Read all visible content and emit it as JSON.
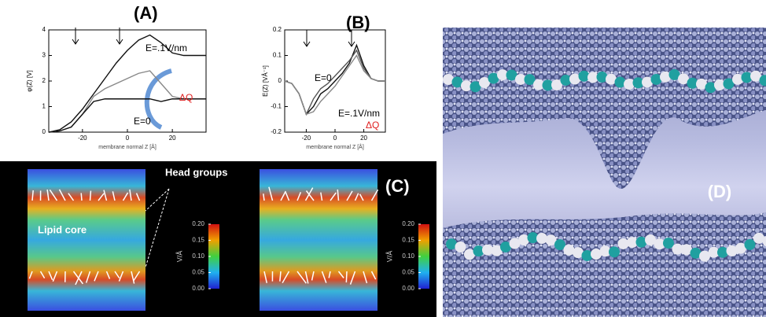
{
  "chart_data": [
    {
      "type": "line",
      "label": "(A)",
      "y_label": "φ(Z) [V]",
      "x_label": "membrane normal Z [Å]",
      "x": [
        -35,
        -30,
        -25,
        -20,
        -15,
        -10,
        -5,
        0,
        5,
        10,
        15,
        20,
        25,
        30,
        35
      ],
      "series": [
        {
          "color": "#111111",
          "values": [
            0,
            0.1,
            0.4,
            0.9,
            1.5,
            2.1,
            2.7,
            3.2,
            3.6,
            3.8,
            3.5,
            3.1,
            3.0,
            3.0,
            3.0
          ]
        },
        {
          "color": "#888888",
          "values": [
            0,
            0.05,
            0.2,
            0.7,
            1.4,
            1.7,
            1.9,
            2.1,
            2.3,
            2.4,
            1.9,
            1.4,
            1.3,
            1.3,
            1.3
          ]
        },
        {
          "color": "#111111",
          "values": [
            0,
            0.05,
            0.2,
            0.7,
            1.2,
            1.3,
            1.3,
            1.3,
            1.3,
            1.3,
            1.2,
            1.3,
            1.3,
            1.3,
            1.3
          ]
        }
      ],
      "xlim": [
        -35,
        35
      ],
      "xticks": [
        -20,
        0,
        20
      ],
      "ylim": [
        0,
        4
      ],
      "yticks": [
        0,
        1,
        2,
        3,
        4
      ],
      "annotations": [
        "E=.1V/nm",
        "E=0",
        "ΔQ"
      ]
    },
    {
      "type": "line",
      "label": "(B)",
      "y_label": "E(Z) [VÅ⁻¹]",
      "x_label": "membrane normal Z [Å]",
      "x": [
        -35,
        -30,
        -25,
        -20,
        -15,
        -10,
        -5,
        0,
        5,
        10,
        15,
        20,
        25,
        30,
        35
      ],
      "series": [
        {
          "color": "#111111",
          "values": [
            0,
            -0.01,
            -0.05,
            -0.13,
            -0.1,
            -0.05,
            -0.03,
            0,
            0.03,
            0.07,
            0.14,
            0.06,
            0.01,
            0,
            0
          ]
        },
        {
          "color": "#555555",
          "values": [
            0,
            -0.01,
            -0.05,
            -0.13,
            -0.07,
            -0.03,
            -0.01,
            0.02,
            0.05,
            0.08,
            0.12,
            0.05,
            0.01,
            0,
            0
          ]
        },
        {
          "color": "#888888",
          "values": [
            0,
            -0.01,
            -0.05,
            -0.13,
            -0.12,
            -0.08,
            -0.05,
            -0.02,
            0.02,
            0.06,
            0.1,
            0.04,
            0.01,
            0,
            0
          ]
        }
      ],
      "xlim": [
        -35,
        35
      ],
      "xticks": [
        -20,
        0,
        20
      ],
      "ylim": [
        -0.2,
        0.2
      ],
      "yticks": [
        -0.2,
        -0.1,
        0,
        0.1,
        0.2
      ],
      "annotations": [
        "E=0",
        "E=.1V/nm",
        "ΔQ"
      ]
    }
  ],
  "panel_c": {
    "label": "(C)",
    "head_groups": "Head groups",
    "lipid_core": "Lipid core",
    "colorbar_label": "V/Å",
    "colorbar_lim": [
      0,
      0.2
    ],
    "colorbar_ticks": [
      {
        "value": 0,
        "label": "0.00"
      },
      {
        "value": 0.05,
        "label": "0.05"
      },
      {
        "value": 0.1,
        "label": "0.10"
      },
      {
        "value": 0.15,
        "label": "0.15"
      },
      {
        "value": 0.2,
        "label": "0.20"
      }
    ]
  },
  "panel_d": {
    "label": "(D)"
  }
}
